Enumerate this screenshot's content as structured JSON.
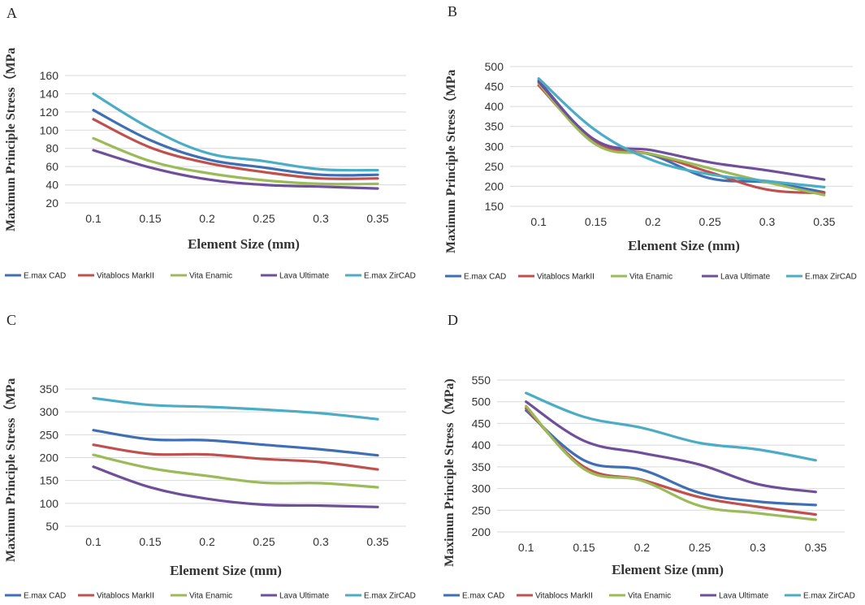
{
  "legend_labels": [
    "E.max CAD",
    "Vitablocs MarkII",
    "Vita Enamic",
    "Lava Ultimate",
    "E.max ZirCAD"
  ],
  "series_colors": [
    "#3e6eb4",
    "#c0504d",
    "#9bbb59",
    "#6f4f99",
    "#4bacc6"
  ],
  "chart_data": [
    {
      "panel": "A",
      "type": "line",
      "xlabel": "Element Size (mm)",
      "ylabel": "Maximun Principle Stress（MPa",
      "categories": [
        "0.1",
        "0.15",
        "0.2",
        "0.25",
        "0.3",
        "0.35"
      ],
      "ylim": [
        20,
        160
      ],
      "yticks": [
        "20",
        "40",
        "60",
        "80",
        "100",
        "120",
        "140",
        "160"
      ],
      "series": [
        {
          "name": "E.max CAD",
          "values": [
            122,
            89,
            68,
            59,
            51,
            51
          ]
        },
        {
          "name": "Vitablocs MarkII",
          "values": [
            112,
            81,
            64,
            54,
            47,
            47
          ]
        },
        {
          "name": "Vita Enamic",
          "values": [
            91,
            66,
            53,
            45,
            41,
            41
          ]
        },
        {
          "name": "Lava Ultimate",
          "values": [
            78,
            59,
            46,
            40,
            38,
            36
          ]
        },
        {
          "name": "E.max ZirCAD",
          "values": [
            140,
            102,
            75,
            66,
            57,
            56
          ]
        }
      ]
    },
    {
      "panel": "B",
      "type": "line",
      "xlabel": "Element Size (mm)",
      "ylabel": "Maximun Principle Stress（MPa",
      "categories": [
        "0.1",
        "0.15",
        "0.2",
        "0.25",
        "0.3",
        "0.35"
      ],
      "ylim": [
        150,
        500
      ],
      "yticks": [
        "150",
        "200",
        "250",
        "300",
        "350",
        "400",
        "450",
        "500"
      ],
      "series": [
        {
          "name": "E.max CAD",
          "values": [
            465,
            312,
            278,
            220,
            210,
            185
          ]
        },
        {
          "name": "Vitablocs MarkII",
          "values": [
            453,
            310,
            280,
            235,
            192,
            183
          ]
        },
        {
          "name": "Vita Enamic",
          "values": [
            458,
            305,
            280,
            245,
            210,
            178
          ]
        },
        {
          "name": "Lava Ultimate",
          "values": [
            462,
            315,
            290,
            260,
            240,
            217
          ]
        },
        {
          "name": "E.max ZirCAD",
          "values": [
            470,
            340,
            265,
            230,
            213,
            198
          ]
        }
      ]
    },
    {
      "panel": "C",
      "type": "line",
      "xlabel": "Element Size (mm)",
      "ylabel": "Maximun Principle Stress（MPa",
      "categories": [
        "0.1",
        "0.15",
        "0.2",
        "0.25",
        "0.3",
        "0.35"
      ],
      "ylim": [
        50,
        350
      ],
      "yticks": [
        "50",
        "100",
        "150",
        "200",
        "250",
        "300",
        "350"
      ],
      "series": [
        {
          "name": "E.max CAD",
          "values": [
            260,
            240,
            238,
            228,
            218,
            205
          ]
        },
        {
          "name": "Vitablocs MarkII",
          "values": [
            228,
            208,
            207,
            197,
            190,
            174
          ]
        },
        {
          "name": "Vita Enamic",
          "values": [
            206,
            177,
            160,
            145,
            144,
            135
          ]
        },
        {
          "name": "Lava Ultimate",
          "values": [
            180,
            135,
            110,
            97,
            95,
            92
          ]
        },
        {
          "name": "E.max ZirCAD",
          "values": [
            330,
            315,
            311,
            305,
            297,
            284
          ]
        }
      ]
    },
    {
      "panel": "D",
      "type": "line",
      "xlabel": "Element Size (mm)",
      "ylabel": "Maximun Principle Stress（MPa)",
      "categories": [
        "0.1",
        "0.15",
        "0.2",
        "0.25",
        "0.3",
        "0.35"
      ],
      "ylim": [
        200,
        550
      ],
      "yticks": [
        "200",
        "250",
        "300",
        "350",
        "400",
        "450",
        "500",
        "550"
      ],
      "series": [
        {
          "name": "E.max CAD",
          "values": [
            480,
            365,
            343,
            290,
            270,
            262
          ]
        },
        {
          "name": "Vitablocs MarkII",
          "values": [
            485,
            350,
            320,
            280,
            258,
            240
          ]
        },
        {
          "name": "Vita Enamic",
          "values": [
            490,
            345,
            318,
            260,
            243,
            228
          ]
        },
        {
          "name": "Lava Ultimate",
          "values": [
            500,
            410,
            382,
            355,
            310,
            292
          ]
        },
        {
          "name": "E.max ZirCAD",
          "values": [
            520,
            465,
            440,
            405,
            390,
            365
          ]
        }
      ]
    }
  ]
}
